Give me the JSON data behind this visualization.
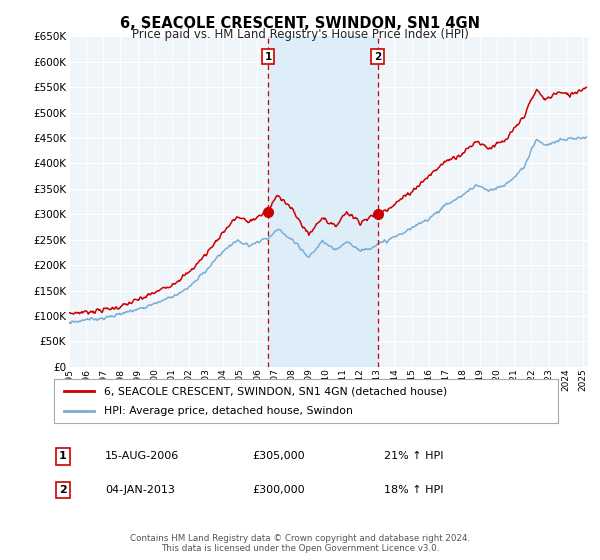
{
  "title": "6, SEACOLE CRESCENT, SWINDON, SN1 4GN",
  "subtitle": "Price paid vs. HM Land Registry's House Price Index (HPI)",
  "ylim": [
    0,
    650000
  ],
  "ytick_values": [
    0,
    50000,
    100000,
    150000,
    200000,
    250000,
    300000,
    350000,
    400000,
    450000,
    500000,
    550000,
    600000,
    650000
  ],
  "xlim_start": 1995.0,
  "xlim_end": 2025.3,
  "line1_color": "#cc0000",
  "line2_color": "#7aadd4",
  "shade_color": "#ddeef8",
  "sale1_x": 2006.617,
  "sale1_y": 305000,
  "sale2_x": 2013.014,
  "sale2_y": 300000,
  "vline_color": "#cc0000",
  "marker_color": "#cc0000",
  "bg_plot": "#f0f5f9",
  "grid_color": "#ffffff",
  "legend_line1": "6, SEACOLE CRESCENT, SWINDON, SN1 4GN (detached house)",
  "legend_line2": "HPI: Average price, detached house, Swindon",
  "sale1_label": "1",
  "sale2_label": "2",
  "sale1_date": "15-AUG-2006",
  "sale1_price": "£305,000",
  "sale1_hpi": "21% ↑ HPI",
  "sale2_date": "04-JAN-2013",
  "sale2_price": "£300,000",
  "sale2_hpi": "18% ↑ HPI",
  "footer": "Contains HM Land Registry data © Crown copyright and database right 2024.\nThis data is licensed under the Open Government Licence v3.0."
}
